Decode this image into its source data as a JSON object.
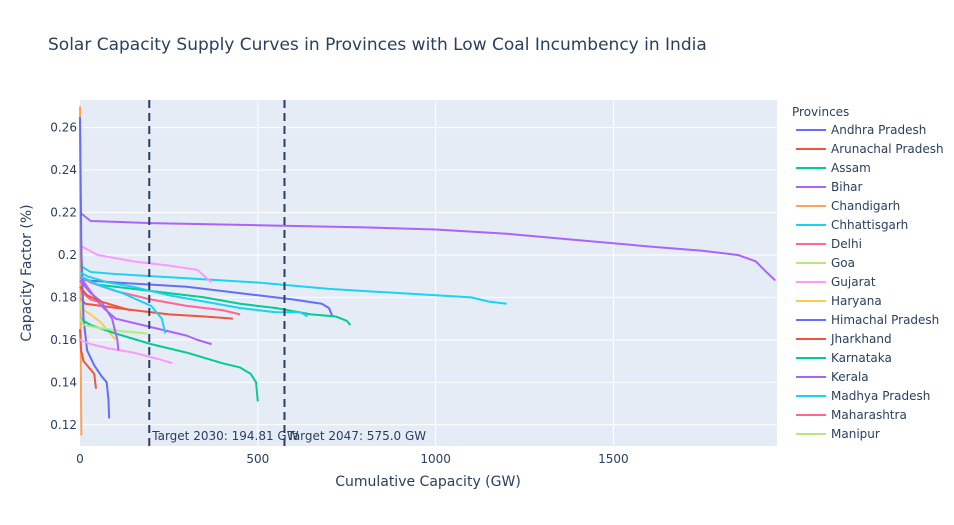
{
  "chart_data": {
    "type": "line",
    "title": "Solar Capacity Supply Curves in Provinces with Low Coal Incumbency in India",
    "xlabel": "Cumulative Capacity (GW)",
    "ylabel": "Capacity Factor (%)",
    "xlim": [
      0,
      1960
    ],
    "ylim": [
      0.11,
      0.273
    ],
    "x_ticks": [
      0,
      500,
      1000,
      1500
    ],
    "y_ticks": [
      0.12,
      0.14,
      0.16,
      0.18,
      0.2,
      0.22,
      0.24,
      0.26
    ],
    "grid": true,
    "legend_title": "Provinces",
    "legend_position": "right",
    "vlines": [
      {
        "x": 194.81,
        "label": "Target 2030: 194.81 GW"
      },
      {
        "x": 575.0,
        "label": "Target 2047: 575.0 GW"
      }
    ],
    "series": [
      {
        "name": "Andhra Pradesh",
        "color": "#636efa",
        "x": [
          0,
          20,
          100,
          200,
          300,
          400,
          500,
          600,
          680,
          700,
          710
        ],
        "y": [
          0.189,
          0.188,
          0.187,
          0.186,
          0.185,
          0.183,
          0.181,
          0.179,
          0.177,
          0.175,
          0.171
        ]
      },
      {
        "name": "Arunachal Pradesh",
        "color": "#EF553B",
        "x": [
          0,
          15,
          60,
          150,
          250,
          350,
          430
        ],
        "y": [
          0.18,
          0.177,
          0.176,
          0.174,
          0.172,
          0.171,
          0.17
        ]
      },
      {
        "name": "Assam",
        "color": "#00cc96",
        "x": [
          0,
          50,
          150,
          250,
          350,
          450,
          550,
          650,
          720,
          750,
          760
        ],
        "y": [
          0.19,
          0.186,
          0.184,
          0.182,
          0.18,
          0.177,
          0.175,
          0.172,
          0.171,
          0.169,
          0.167
        ]
      },
      {
        "name": "Bihar",
        "color": "#ab63fa",
        "x": [
          0,
          30,
          200,
          500,
          800,
          1000,
          1200,
          1400,
          1600,
          1750,
          1850,
          1900,
          1930,
          1955
        ],
        "y": [
          0.22,
          0.216,
          0.215,
          0.214,
          0.213,
          0.212,
          0.21,
          0.207,
          0.204,
          0.202,
          0.2,
          0.197,
          0.192,
          0.188
        ]
      },
      {
        "name": "Chandigarh",
        "color": "#FFA15A",
        "x": [
          0,
          0.5,
          1,
          2,
          3,
          4
        ],
        "y": [
          0.27,
          0.25,
          0.2,
          0.16,
          0.13,
          0.115
        ]
      },
      {
        "name": "Chhattisgarh",
        "color": "#19d3f3",
        "x": [
          0,
          10,
          30,
          100,
          300,
          500,
          700,
          900,
          1100,
          1150,
          1200
        ],
        "y": [
          0.195,
          0.194,
          0.192,
          0.191,
          0.189,
          0.187,
          0.184,
          0.182,
          0.18,
          0.178,
          0.177
        ]
      },
      {
        "name": "Delhi",
        "color": "#FF6692",
        "x": [
          0,
          5,
          15,
          30,
          50
        ],
        "y": [
          0.185,
          0.183,
          0.181,
          0.179,
          0.178
        ]
      },
      {
        "name": "Goa",
        "color": "#B6E880",
        "x": [
          0,
          2,
          4,
          6,
          8
        ],
        "y": [
          0.178,
          0.176,
          0.174,
          0.172,
          0.17
        ]
      },
      {
        "name": "Gujarat",
        "color": "#FF97FF",
        "x": [
          0,
          5,
          50,
          150,
          250,
          330,
          370
        ],
        "y": [
          0.206,
          0.204,
          0.2,
          0.197,
          0.195,
          0.193,
          0.187
        ]
      },
      {
        "name": "Haryana",
        "color": "#FECB52",
        "x": [
          0,
          10,
          30,
          60,
          80,
          100
        ],
        "y": [
          0.175,
          0.174,
          0.172,
          0.168,
          0.164,
          0.16
        ]
      },
      {
        "name": "Himachal Pradesh",
        "color": "#636efa",
        "x": [
          0,
          4,
          10,
          20,
          40,
          60,
          75,
          80,
          82
        ],
        "y": [
          0.265,
          0.2,
          0.17,
          0.155,
          0.148,
          0.143,
          0.14,
          0.132,
          0.123
        ]
      },
      {
        "name": "Jharkhand",
        "color": "#EF553B",
        "x": [
          0,
          3,
          10,
          25,
          40,
          45
        ],
        "y": [
          0.165,
          0.155,
          0.15,
          0.147,
          0.144,
          0.137
        ]
      },
      {
        "name": "Karnataka",
        "color": "#00cc96",
        "x": [
          0,
          30,
          100,
          200,
          300,
          400,
          450,
          480,
          495,
          500
        ],
        "y": [
          0.17,
          0.167,
          0.163,
          0.158,
          0.154,
          0.149,
          0.147,
          0.144,
          0.14,
          0.131
        ]
      },
      {
        "name": "Kerala",
        "color": "#ab63fa",
        "x": [
          0,
          20,
          60,
          100,
          150,
          200,
          250,
          300,
          330,
          370
        ],
        "y": [
          0.19,
          0.185,
          0.176,
          0.17,
          0.168,
          0.166,
          0.164,
          0.162,
          0.16,
          0.158
        ]
      },
      {
        "name": "Madhya Pradesh",
        "color": "#19d3f3",
        "x": [
          0,
          20,
          80,
          150,
          250,
          350,
          450,
          550,
          620,
          640
        ],
        "y": [
          0.192,
          0.19,
          0.187,
          0.185,
          0.181,
          0.178,
          0.175,
          0.173,
          0.173,
          0.171
        ]
      },
      {
        "name": "Maharashtra",
        "color": "#FF6692",
        "x": [
          0,
          30,
          100,
          200,
          300,
          400,
          450
        ],
        "y": [
          0.19,
          0.187,
          0.183,
          0.179,
          0.176,
          0.174,
          0.172
        ]
      },
      {
        "name": "Manipur",
        "color": "#B6E880",
        "x": [
          0,
          10,
          40,
          80,
          120,
          190
        ],
        "y": [
          0.17,
          0.167,
          0.166,
          0.165,
          0.164,
          0.163
        ]
      },
      {
        "name": "",
        "color": "#FF97FF",
        "x": [
          0,
          30,
          80,
          150,
          220,
          260
        ],
        "y": [
          0.16,
          0.158,
          0.156,
          0.154,
          0.151,
          0.149
        ]
      },
      {
        "name": "",
        "color": "#19d3f3",
        "x": [
          0,
          50,
          120,
          200,
          230,
          240
        ],
        "y": [
          0.19,
          0.186,
          0.182,
          0.176,
          0.17,
          0.163
        ]
      },
      {
        "name": "",
        "color": "#ab63fa",
        "x": [
          0,
          30,
          60,
          90,
          105,
          108
        ],
        "y": [
          0.188,
          0.182,
          0.178,
          0.17,
          0.16,
          0.155
        ]
      },
      {
        "name": "",
        "color": "#EF553B",
        "x": [
          0,
          20,
          60,
          100,
          140
        ],
        "y": [
          0.185,
          0.181,
          0.178,
          0.176,
          0.174
        ]
      }
    ]
  }
}
